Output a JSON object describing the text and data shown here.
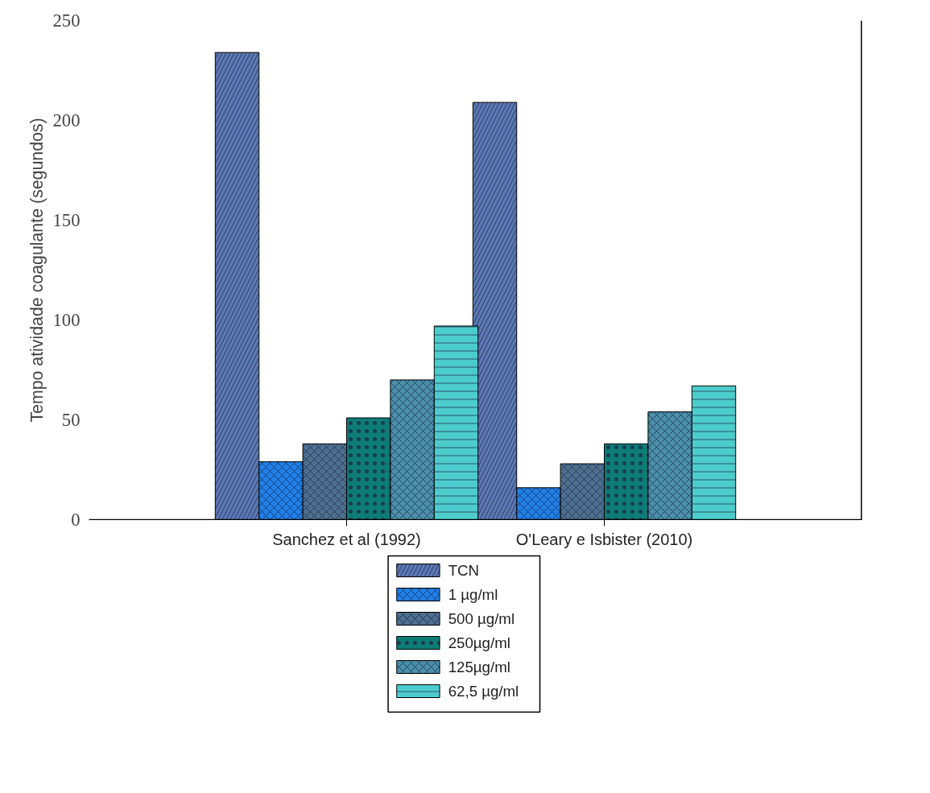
{
  "chart_data": {
    "type": "bar",
    "ylabel": "Tempo atividade coagulante (segundos)",
    "categories": [
      "Sanchez et al (1992)",
      "O'Leary e Isbister (2010)"
    ],
    "series": [
      {
        "name": "TCN",
        "color": "#5a78b4",
        "values": [
          234,
          209
        ]
      },
      {
        "name": "1 µg/ml",
        "color": "#1f80e8",
        "values": [
          29,
          16
        ]
      },
      {
        "name": "500 µg/ml",
        "color": "#4d7090",
        "values": [
          38,
          28
        ]
      },
      {
        "name": "250µg/ml",
        "color": "#0c7c76",
        "values": [
          51,
          38
        ]
      },
      {
        "name": "125µg/ml",
        "color": "#4a90aa",
        "values": [
          70,
          54
        ]
      },
      {
        "name": "62,5 µg/ml",
        "color": "#4ccccc",
        "values": [
          97,
          67
        ]
      }
    ],
    "ylim": [
      0,
      250
    ],
    "yticks": [
      0,
      50,
      100,
      150,
      200,
      250
    ],
    "grid": false,
    "legend": "bottom"
  }
}
